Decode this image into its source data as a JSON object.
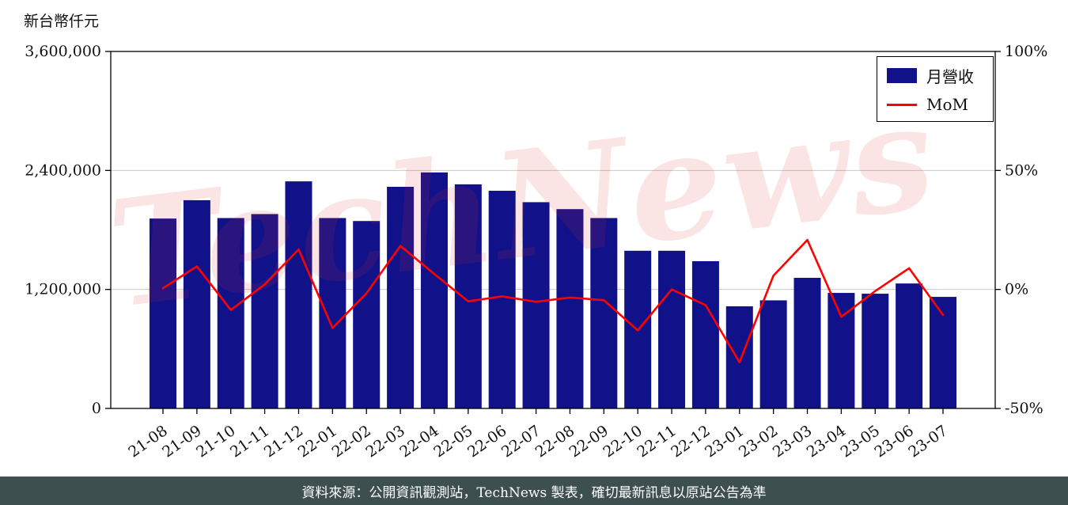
{
  "unit_label": "新台幣仟元",
  "watermark": "TechNews",
  "footer": {
    "text": "資料來源：公開資訊觀測站，TechNews 製表，確切最新訊息以原站公告為準"
  },
  "chart_data": {
    "type": "bar",
    "title": "",
    "categories": [
      "21-08",
      "21-09",
      "21-10",
      "21-11",
      "21-12",
      "22-01",
      "22-02",
      "22-03",
      "22-04",
      "22-05",
      "22-06",
      "22-07",
      "22-08",
      "22-09",
      "22-10",
      "22-11",
      "22-12",
      "23-01",
      "23-02",
      "23-03",
      "23-04",
      "23-05",
      "23-06",
      "23-07"
    ],
    "series": [
      {
        "name": "月營收",
        "type": "bar",
        "axis": "left",
        "color": "#11118a",
        "values": [
          1915000,
          2100000,
          1920000,
          1960000,
          2290000,
          1920000,
          1890000,
          2235000,
          2380000,
          2260000,
          2195000,
          2080000,
          2010000,
          1920000,
          1590000,
          1590000,
          1485000,
          1030000,
          1090000,
          1317000,
          1165000,
          1157000,
          1260000,
          1125000
        ]
      },
      {
        "name": "MoM",
        "type": "line",
        "axis": "right",
        "color": "#ff0000",
        "values": [
          0.5,
          9.7,
          -8.6,
          2.1,
          16.8,
          -16.2,
          -1.6,
          18.3,
          6.5,
          -5.0,
          -2.9,
          -5.2,
          -3.4,
          -4.5,
          -17.2,
          0.0,
          -6.6,
          -30.6,
          5.8,
          20.8,
          -11.5,
          -0.7,
          8.9,
          -10.7
        ]
      }
    ],
    "left_axis": {
      "min": 0,
      "max": 3600000,
      "ticks": [
        {
          "value": 0,
          "label": "0"
        },
        {
          "value": 1200000,
          "label": "1,200,000"
        },
        {
          "value": 2400000,
          "label": "2,400,000"
        },
        {
          "value": 3600000,
          "label": "3,600,000"
        }
      ]
    },
    "right_axis": {
      "min": -50,
      "max": 100,
      "ticks": [
        {
          "value": -50,
          "label": "-50%"
        },
        {
          "value": 0,
          "label": "0%"
        },
        {
          "value": 50,
          "label": "50%"
        },
        {
          "value": 100,
          "label": "100%"
        }
      ]
    },
    "grid": "horizontal",
    "legend_position": "top-right"
  }
}
